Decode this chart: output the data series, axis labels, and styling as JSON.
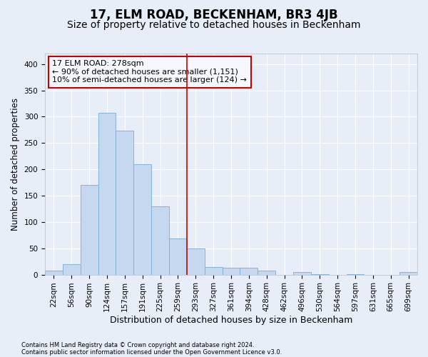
{
  "title": "17, ELM ROAD, BECKENHAM, BR3 4JB",
  "subtitle": "Size of property relative to detached houses in Beckenham",
  "xlabel": "Distribution of detached houses by size in Beckenham",
  "ylabel": "Number of detached properties",
  "footer1": "Contains HM Land Registry data © Crown copyright and database right 2024.",
  "footer2": "Contains public sector information licensed under the Open Government Licence v3.0.",
  "bin_labels": [
    "22sqm",
    "56sqm",
    "90sqm",
    "124sqm",
    "157sqm",
    "191sqm",
    "225sqm",
    "259sqm",
    "293sqm",
    "327sqm",
    "361sqm",
    "394sqm",
    "428sqm",
    "462sqm",
    "496sqm",
    "530sqm",
    "564sqm",
    "597sqm",
    "631sqm",
    "665sqm",
    "699sqm"
  ],
  "bar_heights": [
    7,
    20,
    170,
    308,
    273,
    210,
    130,
    68,
    50,
    15,
    13,
    13,
    8,
    0,
    5,
    1,
    0,
    1,
    0,
    0,
    5
  ],
  "bar_color": "#c5d8f0",
  "bar_edge_color": "#7aacd6",
  "vline_x_index": 8,
  "vline_color": "#cc0000",
  "annotation_line1": "17 ELM ROAD: 278sqm",
  "annotation_line2": "← 90% of detached houses are smaller (1,151)",
  "annotation_line3": "10% of semi-detached houses are larger (124) →",
  "annotation_box_color": "#cc0000",
  "annotation_face_color": "#f5f8ff",
  "ylim": [
    0,
    420
  ],
  "yticks": [
    0,
    50,
    100,
    150,
    200,
    250,
    300,
    350,
    400
  ],
  "background_color": "#e8eef8",
  "grid_color": "#ffffff",
  "title_fontsize": 12,
  "subtitle_fontsize": 10,
  "xlabel_fontsize": 9,
  "ylabel_fontsize": 8.5,
  "tick_fontsize": 7.5,
  "annotation_fontsize": 8
}
